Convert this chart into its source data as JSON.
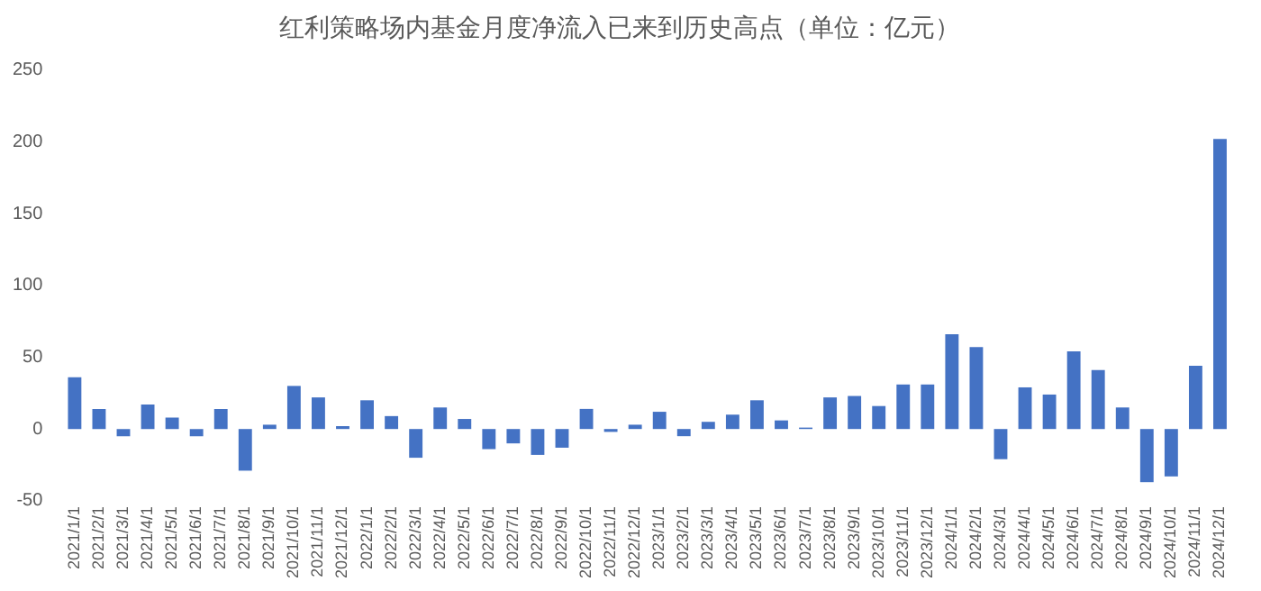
{
  "chart_data": {
    "type": "bar",
    "title": "红利策略场内基金月度净流入已来到历史高点（单位：亿元）",
    "categories": [
      "2021/1/1",
      "2021/2/1",
      "2021/3/1",
      "2021/4/1",
      "2021/5/1",
      "2021/6/1",
      "2021/7/1",
      "2021/8/1",
      "2021/9/1",
      "2021/10/1",
      "2021/11/1",
      "2021/12/1",
      "2022/1/1",
      "2022/2/1",
      "2022/3/1",
      "2022/4/1",
      "2022/5/1",
      "2022/6/1",
      "2022/7/1",
      "2022/8/1",
      "2022/9/1",
      "2022/10/1",
      "2022/11/1",
      "2022/12/1",
      "2023/1/1",
      "2023/2/1",
      "2023/3/1",
      "2023/4/1",
      "2023/5/1",
      "2023/6/1",
      "2023/7/1",
      "2023/8/1",
      "2023/9/1",
      "2023/10/1",
      "2023/11/1",
      "2023/12/1",
      "2024/1/1",
      "2024/2/1",
      "2024/3/1",
      "2024/4/1",
      "2024/5/1",
      "2024/6/1",
      "2024/7/1",
      "2024/8/1",
      "2024/9/1",
      "2024/10/1",
      "2024/11/1",
      "2024/12/1"
    ],
    "values": [
      36,
      14,
      -5,
      17,
      8,
      -5,
      14,
      -29,
      3,
      30,
      22,
      2,
      20,
      9,
      -20,
      15,
      7,
      -14,
      -10,
      -18,
      -13,
      14,
      -2,
      3,
      12,
      -5,
      5,
      10,
      20,
      6,
      1,
      22,
      23,
      16,
      31,
      31,
      66,
      57,
      -21,
      29,
      24,
      54,
      41,
      15,
      -37,
      -33,
      44,
      202
    ],
    "color": "#4472c4",
    "ylim": [
      -50,
      250
    ],
    "yticks": [
      -50,
      0,
      50,
      100,
      150,
      200,
      250
    ],
    "grid": false,
    "legend": false
  }
}
